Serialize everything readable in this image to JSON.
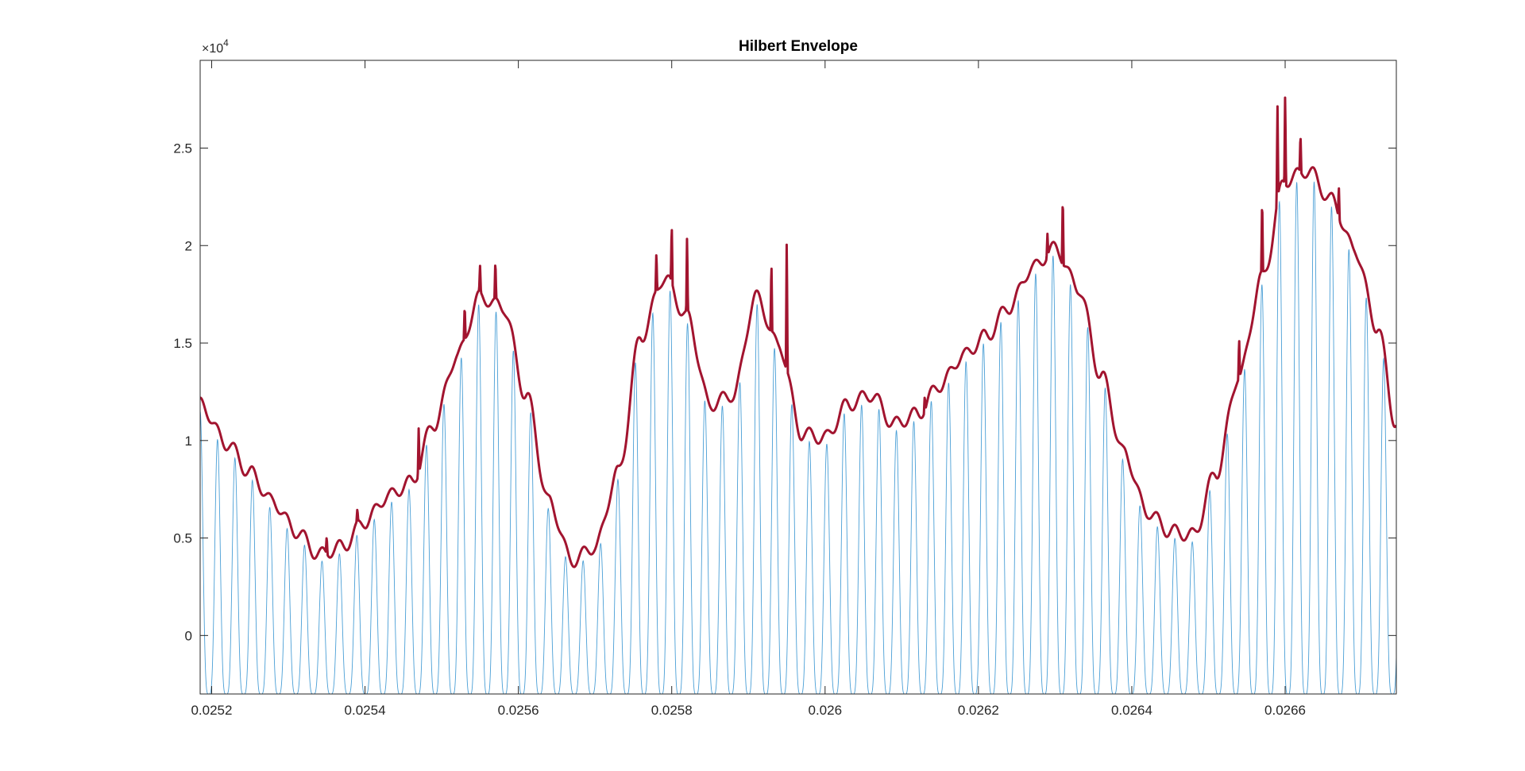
{
  "chart_data": {
    "type": "line",
    "title": "Hilbert Envelope",
    "xlabel": "",
    "ylabel": "",
    "y_exponent_label": "×10",
    "y_exponent_power": "4",
    "xlim": [
      0.025185,
      0.026745
    ],
    "ylim": [
      -3000,
      29500
    ],
    "x_ticks": [
      0.0252,
      0.0254,
      0.0256,
      0.0258,
      0.026,
      0.0262,
      0.0264,
      0.0266
    ],
    "x_tick_labels": [
      "0.0252",
      "0.0254",
      "0.0256",
      "0.0258",
      "0.026",
      "0.0262",
      "0.0264",
      "0.0266"
    ],
    "y_ticks": [
      0,
      5000,
      10000,
      15000,
      20000,
      25000
    ],
    "y_tick_labels": [
      "0",
      "0.5",
      "1",
      "1.5",
      "2",
      "2.5"
    ],
    "grid": false,
    "legend": "none",
    "series": [
      {
        "role": "signal",
        "color": "#4a9fd6",
        "line_width": 0.9,
        "carrier_period": 2.27e-05,
        "trough": -3000,
        "x": [
          0.025185,
          0.02522,
          0.02525,
          0.02528,
          0.02531,
          0.02534,
          0.02537,
          0.0254,
          0.02543,
          0.02546,
          0.02549,
          0.02552,
          0.02555,
          0.02558,
          0.02561,
          0.02564,
          0.02567,
          0.0257,
          0.02573,
          0.02576,
          0.02579,
          0.02582,
          0.02585,
          0.02588,
          0.02591,
          0.02594,
          0.02597,
          0.026,
          0.02603,
          0.02606,
          0.02609,
          0.02612,
          0.02615,
          0.02618,
          0.02621,
          0.02624,
          0.02627,
          0.0263,
          0.02633,
          0.02636,
          0.02639,
          0.02642,
          0.02645,
          0.02648,
          0.02651,
          0.02654,
          0.02657,
          0.0266,
          0.02663,
          0.02666,
          0.02669,
          0.02672,
          0.026745
        ],
        "y": [
          11500,
          9500,
          8000,
          6500,
          5000,
          3800,
          4200,
          5500,
          6800,
          7500,
          10500,
          14000,
          17000,
          16500,
          12000,
          6500,
          3500,
          4200,
          8000,
          15000,
          18000,
          16000,
          11500,
          12000,
          17000,
          14500,
          10000,
          9800,
          11500,
          12000,
          10500,
          11000,
          12500,
          14000,
          15000,
          16500,
          18500,
          19500,
          17500,
          13000,
          9000,
          6000,
          5000,
          4800,
          8000,
          13000,
          18000,
          23000,
          23500,
          22000,
          19500,
          15500,
          10500
        ]
      },
      {
        "role": "envelope",
        "color": "#a2142f",
        "line_width": 3,
        "x": [
          0.025185,
          0.02522,
          0.02525,
          0.02528,
          0.02531,
          0.02534,
          0.02537,
          0.0254,
          0.02543,
          0.02546,
          0.02549,
          0.02552,
          0.02555,
          0.02558,
          0.02561,
          0.02564,
          0.02567,
          0.0257,
          0.02573,
          0.02576,
          0.02579,
          0.02582,
          0.02585,
          0.02588,
          0.02591,
          0.02594,
          0.02597,
          0.026,
          0.02603,
          0.02606,
          0.02609,
          0.02612,
          0.02615,
          0.02618,
          0.02621,
          0.02624,
          0.02627,
          0.0263,
          0.02633,
          0.02636,
          0.02639,
          0.02642,
          0.02645,
          0.02648,
          0.02651,
          0.02654,
          0.02657,
          0.0266,
          0.02663,
          0.02666,
          0.02669,
          0.02672,
          0.026745
        ],
        "y": [
          11500,
          9500,
          8000,
          6500,
          5000,
          3800,
          4200,
          5500,
          6800,
          7500,
          10500,
          14000,
          17000,
          16500,
          12000,
          6500,
          3500,
          4200,
          8000,
          15000,
          18000,
          16000,
          11500,
          12000,
          17000,
          14500,
          10000,
          9800,
          11500,
          12000,
          10500,
          11000,
          12500,
          14000,
          15000,
          16500,
          18500,
          19500,
          17500,
          13000,
          9000,
          6000,
          5000,
          4800,
          8000,
          13000,
          18000,
          23000,
          23500,
          22000,
          19500,
          15500,
          10500
        ],
        "ripple_amplitude": 700,
        "ripple_period": 2.27e-05,
        "spikes": [
          [
            0.02521,
            10200
          ],
          [
            0.02535,
            5100
          ],
          [
            0.02539,
            6500
          ],
          [
            0.02547,
            10700
          ],
          [
            0.02551,
            12800
          ],
          [
            0.02553,
            17000
          ],
          [
            0.02555,
            19000
          ],
          [
            0.02557,
            19300
          ],
          [
            0.02571,
            5000
          ],
          [
            0.02574,
            8000
          ],
          [
            0.02576,
            11200
          ],
          [
            0.02578,
            19700
          ],
          [
            0.0258,
            21200
          ],
          [
            0.02582,
            20600
          ],
          [
            0.02587,
            11500
          ],
          [
            0.02593,
            19300
          ],
          [
            0.02595,
            20500
          ],
          [
            0.02613,
            12300
          ],
          [
            0.02617,
            13700
          ],
          [
            0.02623,
            16000
          ],
          [
            0.02627,
            18000
          ],
          [
            0.02629,
            20600
          ],
          [
            0.02631,
            22700
          ],
          [
            0.02652,
            9200
          ],
          [
            0.02654,
            15300
          ],
          [
            0.02657,
            22600
          ],
          [
            0.02659,
            27300
          ],
          [
            0.0266,
            27900
          ],
          [
            0.02662,
            25800
          ],
          [
            0.02667,
            23100
          ]
        ]
      }
    ]
  }
}
